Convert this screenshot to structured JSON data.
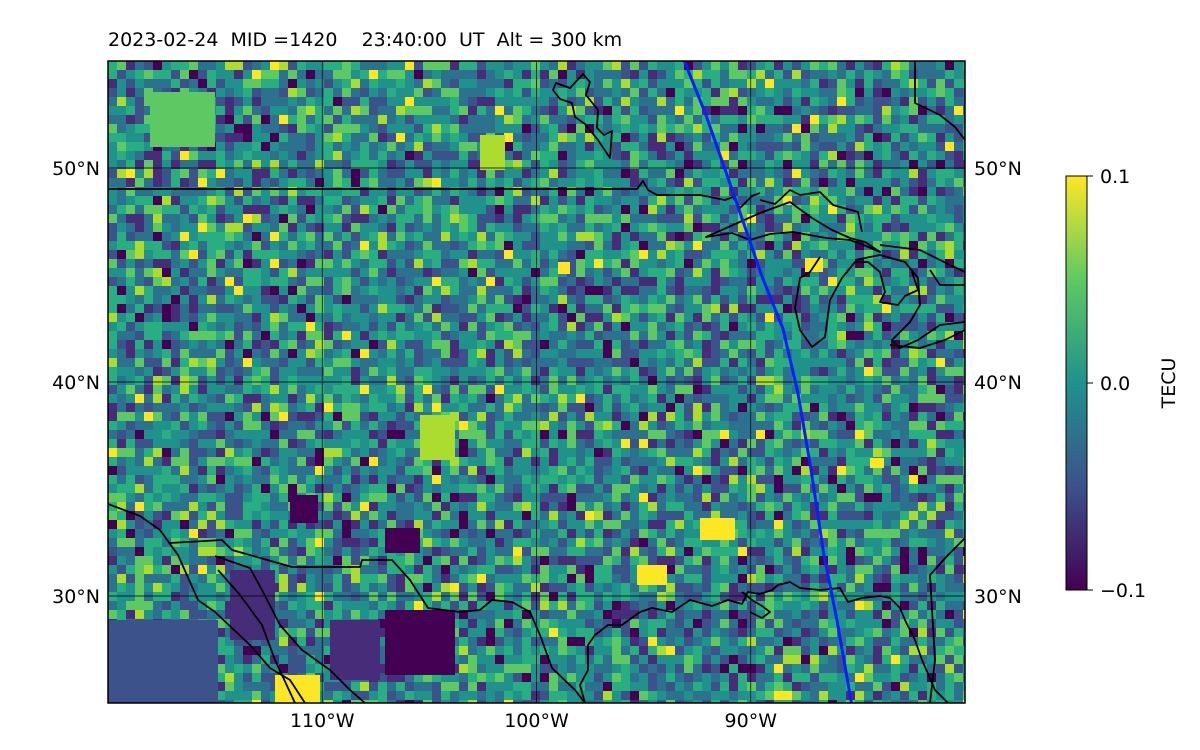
{
  "figure": {
    "title": "2023-02-24  MID =1420    23:40:00  UT  Alt = 300 km"
  },
  "map": {
    "extent": {
      "lon_min": -120,
      "lon_max": -80,
      "lat_min": 25,
      "lat_max": 55
    },
    "lat_ticks": [
      {
        "lat": 50,
        "label": "50°N"
      },
      {
        "lat": 40,
        "label": "40°N"
      },
      {
        "lat": 30,
        "label": "30°N"
      }
    ],
    "lon_ticks": [
      {
        "lon": -110,
        "label": "110°W"
      },
      {
        "lon": -100,
        "label": "100°W"
      },
      {
        "lon": -90,
        "label": "90°W"
      }
    ],
    "overlay_line": {
      "color": "#0a1fff",
      "points": [
        [
          -93.1,
          55
        ],
        [
          -92.1,
          52.5
        ],
        [
          -90.7,
          48.5
        ],
        [
          -89.5,
          45
        ],
        [
          -88.5,
          42.5
        ],
        [
          -87.8,
          39.5
        ],
        [
          -87.2,
          36
        ],
        [
          -86.6,
          32
        ],
        [
          -86.0,
          29
        ],
        [
          -85.3,
          25
        ]
      ]
    },
    "coastline_color": "#000000"
  },
  "colorbar": {
    "label": "TECU",
    "min": -0.1,
    "max": 0.1,
    "ticks": [
      {
        "value": 0.1,
        "label": "0.1"
      },
      {
        "value": 0.0,
        "label": "0.0"
      },
      {
        "value": -0.1,
        "label": "−0.1"
      }
    ],
    "colormap": "viridis",
    "colors": [
      "#440154",
      "#3b528b",
      "#21918c",
      "#5ec962",
      "#fde725"
    ]
  }
}
